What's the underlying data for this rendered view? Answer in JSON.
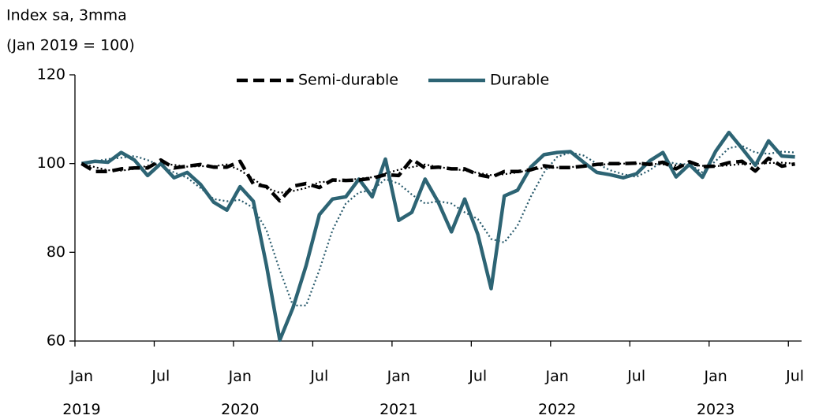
{
  "chart_data": {
    "type": "line",
    "ylabel": [
      "Index sa, 3mma",
      "(Jan 2019 = 100)"
    ],
    "categories": [
      "Jan 2019",
      null,
      null,
      null,
      null,
      null,
      "Jul",
      null,
      null,
      null,
      null,
      null,
      "Jan 2020",
      null,
      null,
      null,
      null,
      null,
      "Jul",
      null,
      null,
      null,
      null,
      null,
      "Jan 2021",
      null,
      null,
      null,
      null,
      null,
      "Jul",
      null,
      null,
      null,
      null,
      null,
      "Jan 2022",
      null,
      null,
      null,
      null,
      null,
      "Jul",
      null,
      null,
      null,
      null,
      null,
      "Jan 2023",
      null,
      null,
      null,
      null,
      null,
      "Jul"
    ],
    "ylim": [
      60,
      120
    ],
    "yticks": [
      60,
      80,
      100,
      120
    ],
    "legend": "top",
    "series": [
      {
        "color": "#27596b",
        "style": "dotted",
        "values": [
          100,
          100.5,
          101,
          101.3,
          101.7,
          100.8,
          99.5,
          98,
          96.8,
          94.5,
          92,
          91.5,
          91.8,
          90,
          85,
          76,
          68,
          68,
          76,
          85,
          91,
          93.5,
          94,
          96.5,
          95.5,
          93,
          91,
          91.5,
          91,
          89,
          87.5,
          83,
          82.2,
          86,
          92.5,
          98,
          101.5,
          102.5,
          101.8,
          100,
          98.5,
          97.6,
          97,
          98.5,
          100.6,
          100,
          99.8,
          98,
          100.6,
          103.5,
          104,
          102.5,
          102.2,
          102.7,
          102.5
        ]
      },
      {
        "color": "#000000",
        "style": "dotted",
        "values": [
          100,
          99.2,
          98.5,
          98.4,
          98.8,
          99.5,
          100,
          99.7,
          99.3,
          99.4,
          99.4,
          99.8,
          98.5,
          96.5,
          94.5,
          93.4,
          93.8,
          94.5,
          95.8,
          96,
          96.2,
          96.6,
          96.9,
          97.8,
          98.6,
          99.2,
          99.8,
          99.2,
          98.9,
          98.4,
          97.9,
          97.4,
          97.6,
          98,
          98.6,
          99,
          99.1,
          99.2,
          99.4,
          99.7,
          99.9,
          100,
          100,
          100,
          99.8,
          99.6,
          99.7,
          99.5,
          99.4,
          99.6,
          99.9,
          100,
          100.1,
          100.2,
          100
        ]
      },
      {
        "name": "Durable",
        "color": "#2d6474",
        "style": "solid",
        "values": [
          100,
          100.5,
          100.3,
          102.5,
          100.8,
          97.3,
          100,
          96.8,
          98,
          95.3,
          91.3,
          89.5,
          94.8,
          91.5,
          77,
          60.2,
          67.5,
          77,
          88.5,
          92,
          92.5,
          96.5,
          92.5,
          101,
          87.2,
          89,
          96.5,
          91.3,
          84.6,
          92,
          84,
          71.8,
          92.7,
          94,
          99.2,
          102,
          102.5,
          102.7,
          100.3,
          98,
          97.5,
          96.8,
          97.7,
          100.6,
          102.5,
          97,
          99.8,
          96.9,
          102.8,
          107,
          103.4,
          99.6,
          105.1,
          101.7,
          101.5
        ]
      },
      {
        "name": "Semi-durable",
        "color": "#000000",
        "style": "dashed",
        "values": [
          100,
          98.2,
          98.2,
          98.8,
          99,
          99,
          100.8,
          99,
          99.4,
          99.8,
          99.2,
          99.2,
          100.5,
          95.4,
          94.8,
          91.6,
          94.9,
          95.5,
          94.6,
          96.3,
          96.2,
          96.3,
          96.7,
          97.5,
          97.3,
          101,
          99,
          99.2,
          98.8,
          98.8,
          97.5,
          96.9,
          98.2,
          98.2,
          98.6,
          99.5,
          99.1,
          99.1,
          99.4,
          99.8,
          100,
          100,
          100.1,
          99.8,
          100.3,
          98.8,
          100.4,
          99.3,
          99.4,
          100.2,
          100.5,
          98.3,
          101.2,
          99.4,
          99.9
        ]
      }
    ]
  }
}
